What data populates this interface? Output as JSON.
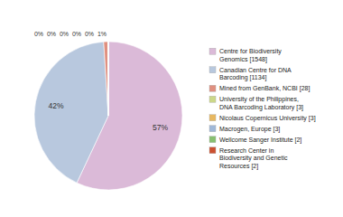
{
  "chart_data": {
    "type": "pie",
    "categories": [
      "Centre for Biodiversity\nGenomics [1548]",
      "Canadian Centre for DNA\nBarcoding [1134]",
      "Mined from GenBank, NCBI [28]",
      "University of the Philippines,\nDNA Barcoding Laboratory [3]",
      "Nicolaus Copernicus University [3]",
      "Macrogen, Europe [3]",
      "Wellcome Sanger Institute [2]",
      "Research Center in\nBiodiversity and Genetic\nResources [2]"
    ],
    "values": [
      57,
      42,
      1,
      0,
      0,
      0,
      0,
      0
    ],
    "value_labels": [
      "57%",
      "42%",
      "1%",
      "0%",
      "0%",
      "0%",
      "0%",
      "0%"
    ],
    "colors": [
      "#dbbad8",
      "#b8c8de",
      "#e09080",
      "#ccd888",
      "#e8b860",
      "#a0b8d8",
      "#88c070",
      "#cc5030"
    ],
    "data_labels": true,
    "legend": "right"
  }
}
